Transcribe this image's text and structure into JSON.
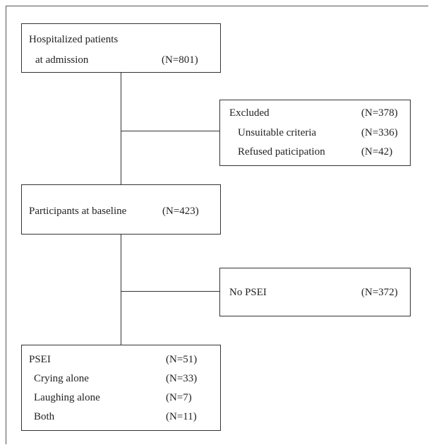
{
  "admission": {
    "line1": "Hospitalized patients",
    "line2": "at admission",
    "count": "(N=801)"
  },
  "excluded": {
    "title": "Excluded",
    "title_count": "(N=378)",
    "items": [
      {
        "label": "Unsuitable criteria",
        "count": "(N=336)"
      },
      {
        "label": "Refused paticipation",
        "count": "(N=42)"
      }
    ]
  },
  "baseline": {
    "label": "Participants at baseline",
    "count": "(N=423)"
  },
  "no_psei": {
    "label": "No PSEI",
    "count": "(N=372)"
  },
  "psei": {
    "title": "PSEI",
    "title_count": "(N=51)",
    "items": [
      {
        "label": "Crying alone",
        "count": "(N=33)"
      },
      {
        "label": "Laughing alone",
        "count": "(N=7)"
      },
      {
        "label": "Both",
        "count": "(N=11)"
      }
    ]
  }
}
